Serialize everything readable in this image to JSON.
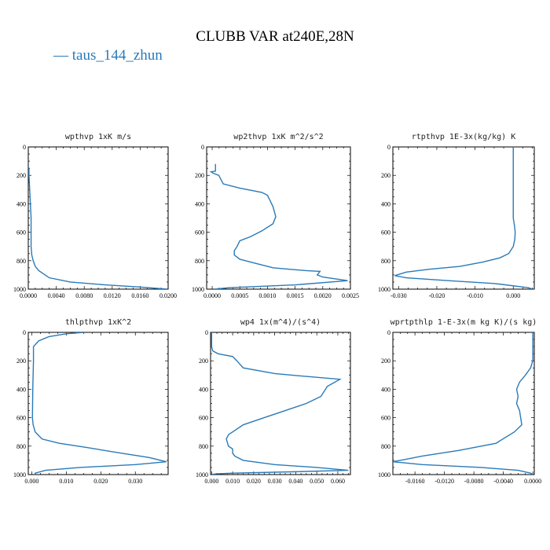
{
  "title": "CLUBB VAR at240E,28N",
  "legend_label": "taus_144_zhun",
  "colors": {
    "series": "#2a7ab8",
    "axis": "#000000"
  },
  "chart_data": [
    {
      "type": "line",
      "title": "wpthvp   1xK m/s",
      "xlim": [
        0,
        0.02
      ],
      "ylim": [
        1000,
        0
      ],
      "xticks": [
        0,
        0.004,
        0.008,
        0.012,
        0.016,
        0.02
      ],
      "xticklabels": [
        "0.0000",
        "0.0040",
        "0.0080",
        "0.0120",
        "0.0160",
        "0.0200"
      ],
      "yticks": [
        0,
        200,
        400,
        600,
        800,
        1000
      ],
      "yticklabels": [
        "0",
        "200",
        "400",
        "600",
        "800",
        "1000"
      ],
      "series": [
        {
          "x": [
            0.0001,
            0.0001,
            0.0002,
            0.0003,
            0.0004,
            0.0004,
            0.0004,
            0.0005,
            0.0007,
            0.001,
            0.0015,
            0.003,
            0.006,
            0.011,
            0.016,
            0.0198
          ],
          "y": [
            150,
            200,
            300,
            400,
            500,
            600,
            700,
            760,
            800,
            840,
            870,
            920,
            950,
            970,
            985,
            1000
          ]
        }
      ]
    },
    {
      "type": "line",
      "title": "wp2thvp   1xK m^2/s^2",
      "xlim": [
        -0.0001,
        0.0025
      ],
      "ylim": [
        1000,
        0
      ],
      "xticks": [
        0,
        0.0005,
        0.001,
        0.0015,
        0.002,
        0.0025
      ],
      "xticklabels": [
        "0.0000",
        "0.0005",
        "0.0010",
        "0.0015",
        "0.0020",
        "0.0025"
      ],
      "yticks": [
        0,
        200,
        400,
        600,
        800,
        1000
      ],
      "yticklabels": [
        "0",
        "200",
        "400",
        "600",
        "800",
        "1000"
      ],
      "series": [
        {
          "x": [
            6e-05,
            6e-05,
            6e-05,
            -2e-05,
            2e-05,
            0.00012,
            0.0002,
            0.0005,
            0.0009,
            0.001,
            0.0011,
            0.00115,
            0.0011,
            0.0009,
            0.0007,
            0.0005,
            0.00045,
            0.0004,
            0.0004,
            0.0005,
            0.0008,
            0.0011,
            0.0014,
            0.0017,
            0.00195,
            0.0019,
            0.002,
            0.00245,
            0.0015,
            0.0003,
            5e-05
          ],
          "y": [
            120,
            150,
            170,
            175,
            185,
            200,
            260,
            290,
            320,
            340,
            420,
            490,
            540,
            590,
            630,
            660,
            700,
            730,
            760,
            790,
            820,
            850,
            860,
            870,
            875,
            900,
            915,
            940,
            970,
            990,
            1000
          ]
        }
      ]
    },
    {
      "type": "line",
      "title": "rtpthvp   1E-3x(kg/kg) K",
      "xlim": [
        -0.0315,
        0.0055
      ],
      "ylim": [
        1000,
        0
      ],
      "xticks": [
        -0.03,
        -0.02,
        -0.01,
        0
      ],
      "xticklabels": [
        "-0.030",
        "-0.020",
        "-0.010",
        "0.000"
      ],
      "yticks": [
        0,
        200,
        400,
        600,
        800,
        1000
      ],
      "yticklabels": [
        "0",
        "200",
        "400",
        "600",
        "800",
        "1000"
      ],
      "series": [
        {
          "x": [
            0,
            0,
            0,
            0,
            0.0003,
            0.0005,
            0.0004,
            0,
            -0.0012,
            -0.0035,
            -0.008,
            -0.014,
            -0.022,
            -0.028,
            -0.031,
            -0.028,
            -0.017,
            -0.005,
            0.004,
            0.005
          ],
          "y": [
            0,
            200,
            400,
            500,
            550,
            600,
            650,
            700,
            750,
            780,
            810,
            840,
            860,
            880,
            905,
            920,
            940,
            960,
            990,
            1000
          ]
        }
      ]
    },
    {
      "type": "line",
      "title": "thlpthvp   1xK^2",
      "xlim": [
        -0.001,
        0.0395
      ],
      "ylim": [
        1000,
        0
      ],
      "xticks": [
        0,
        0.01,
        0.02,
        0.03
      ],
      "xticklabels": [
        "0.000",
        "0.010",
        "0.020",
        "0.030"
      ],
      "yticks": [
        0,
        200,
        400,
        600,
        800,
        1000
      ],
      "yticklabels": [
        "0",
        "200",
        "400",
        "600",
        "800",
        "1000"
      ],
      "series": [
        {
          "x": [
            0.015,
            0.01,
            0.005,
            0.002,
            0.0005,
            0.0005,
            0.0003,
            0.0002,
            0.0004,
            0.001,
            0.003,
            0.008,
            0.016,
            0.026,
            0.034,
            0.039,
            0.03,
            0.014,
            0.004,
            0.001,
            0.0012
          ],
          "y": [
            0,
            10,
            30,
            60,
            100,
            200,
            400,
            600,
            650,
            700,
            750,
            780,
            810,
            850,
            880,
            910,
            930,
            950,
            970,
            990,
            1000
          ]
        }
      ]
    },
    {
      "type": "line",
      "title": "wp4   1x(m^4)/(s^4)",
      "xlim": [
        -0.0005,
        0.066
      ],
      "ylim": [
        1000,
        0
      ],
      "xticks": [
        0,
        0.01,
        0.02,
        0.03,
        0.04,
        0.05,
        0.06
      ],
      "xticklabels": [
        "0.000",
        "0.010",
        "0.020",
        "0.030",
        "0.040",
        "0.050",
        "0.060"
      ],
      "yticks": [
        0,
        200,
        400,
        600,
        800,
        1000
      ],
      "yticklabels": [
        "0",
        "200",
        "400",
        "600",
        "800",
        "1000"
      ],
      "series": [
        {
          "x": [
            0,
            0,
            0.0005,
            0.003,
            0.01,
            0.012,
            0.015,
            0.03,
            0.045,
            0.061,
            0.055,
            0.052,
            0.045,
            0.035,
            0.025,
            0.015,
            0.01,
            0.008,
            0.007,
            0.008,
            0.01,
            0.01,
            0.011,
            0.015,
            0.03,
            0.05,
            0.065,
            0.04,
            0.01,
            0.002,
            0
          ],
          "y": [
            0,
            100,
            130,
            150,
            170,
            200,
            250,
            290,
            310,
            330,
            380,
            450,
            500,
            550,
            600,
            650,
            700,
            720,
            750,
            800,
            820,
            850,
            870,
            900,
            930,
            950,
            970,
            980,
            990,
            995,
            1000
          ]
        }
      ]
    },
    {
      "type": "line",
      "title": "wprtpthlp   1-E-3x(m kg K)/(s kg)",
      "xlim": [
        -0.019,
        0.0002
      ],
      "ylim": [
        1000,
        0
      ],
      "xticks": [
        -0.016,
        -0.012,
        -0.008,
        -0.004,
        0
      ],
      "xticklabels": [
        "-0.0160",
        "-0.0120",
        "-0.0080",
        "-0.0040",
        "0.0000"
      ],
      "yticks": [
        0,
        200,
        400,
        600,
        800,
        1000
      ],
      "yticklabels": [
        "0",
        "200",
        "400",
        "600",
        "800",
        "1000"
      ],
      "series": [
        {
          "x": [
            0,
            0,
            -0.0003,
            -0.001,
            -0.0018,
            -0.0022,
            -0.002,
            -0.0022,
            -0.0018,
            -0.0015,
            -0.0025,
            -0.005,
            -0.01,
            -0.015,
            -0.019,
            -0.015,
            -0.007,
            -0.002,
            -0.0003,
            0
          ],
          "y": [
            0,
            200,
            250,
            300,
            350,
            400,
            450,
            500,
            550,
            650,
            700,
            780,
            830,
            870,
            910,
            930,
            950,
            970,
            990,
            1000
          ]
        }
      ]
    }
  ]
}
